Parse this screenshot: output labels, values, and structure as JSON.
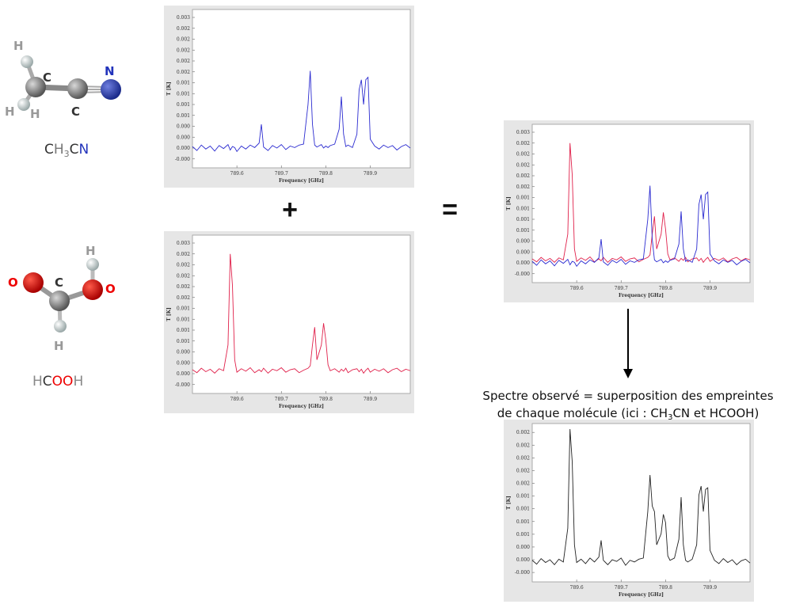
{
  "molecules": [
    {
      "atoms": [
        "H",
        "C",
        "N",
        "H",
        "H",
        "C"
      ],
      "formula": [
        "C",
        "H",
        "3",
        "C",
        "N"
      ]
    },
    {
      "atoms": [
        "H",
        "O",
        "C",
        "O",
        "H"
      ],
      "formula": [
        "H",
        "C",
        "OO",
        "H"
      ]
    }
  ],
  "operators": [
    "+",
    "="
  ],
  "caption": {
    "line1": "Spectre observé = superposition des empreintes",
    "line2": [
      "de chaque molécule (ici : CH",
      "3",
      "CN et HCOOH)"
    ]
  },
  "chart_data": [
    {
      "type": "line",
      "xlabel": "Frequency [GHz]",
      "ylabel": "T [K]",
      "x": [
        789.5,
        789.51,
        789.52,
        789.53,
        789.54,
        789.55,
        789.56,
        789.57,
        789.58,
        789.585,
        789.59,
        789.595,
        789.6,
        789.61,
        789.62,
        789.63,
        789.64,
        789.65,
        789.655,
        789.66,
        789.67,
        789.68,
        789.69,
        789.7,
        789.71,
        789.72,
        789.73,
        789.74,
        789.75,
        789.76,
        789.765,
        789.77,
        789.775,
        789.78,
        789.79,
        789.795,
        789.8,
        789.805,
        789.81,
        789.82,
        789.83,
        789.835,
        789.84,
        789.845,
        789.85,
        789.86,
        789.87,
        789.875,
        789.88,
        789.885,
        789.89,
        789.895,
        789.9,
        789.91,
        789.92,
        789.93,
        789.94,
        789.95,
        789.96,
        789.97,
        789.98,
        789.99
      ],
      "series": [
        {
          "color": "#2b2bd0",
          "values": [
            5e-05,
            -3e-05,
            8e-05,
            0.0,
            6e-05,
            -4e-05,
            7e-05,
            1e-05,
            9e-05,
            -2e-05,
            5e-05,
            3e-05,
            -5e-05,
            6e-05,
            0.0,
            8e-05,
            3e-05,
            0.00012,
            0.0005,
            4e-05,
            -3e-05,
            7e-05,
            2e-05,
            9e-05,
            -1e-05,
            6e-05,
            3e-05,
            8e-05,
            0.0001,
            0.0009,
            0.00158,
            0.0005,
            8e-05,
            4e-05,
            9e-05,
            2e-05,
            6e-05,
            3e-05,
            7e-05,
            0.0001,
            0.0004,
            0.00106,
            0.0003,
            5e-05,
            8e-05,
            3e-05,
            0.0003,
            0.0012,
            0.0014,
            0.0009,
            0.0014,
            0.00145,
            0.0002,
            6e-05,
            0.0,
            8e-05,
            3e-05,
            7e-05,
            -2e-05,
            5e-05,
            9e-05,
            2e-05
          ]
        }
      ],
      "xlim": [
        789.5,
        789.99
      ],
      "ylim": [
        -0.00038,
        0.00282
      ],
      "xticks": [
        789.6,
        789.7,
        789.8,
        789.9
      ],
      "yticks": [
        {
          "value": -0.0002,
          "label": "-0.000"
        },
        {
          "value": 2e-05,
          "label": "0.000"
        },
        {
          "value": 0.00024,
          "label": "0.000"
        },
        {
          "value": 0.00046,
          "label": "0.000"
        },
        {
          "value": 0.00068,
          "label": "0.001"
        },
        {
          "value": 0.0009,
          "label": "0.001"
        },
        {
          "value": 0.00112,
          "label": "0.001"
        },
        {
          "value": 0.00134,
          "label": "0.001"
        },
        {
          "value": 0.00156,
          "label": "0.002"
        },
        {
          "value": 0.00178,
          "label": "0.002"
        },
        {
          "value": 0.002,
          "label": "0.002"
        },
        {
          "value": 0.00222,
          "label": "0.002"
        },
        {
          "value": 0.00244,
          "label": "0.002"
        },
        {
          "value": 0.00266,
          "label": "0.003"
        }
      ]
    },
    {
      "type": "line",
      "xlabel": "Frequency [GHz]",
      "ylabel": "T [K]",
      "x": [
        789.5,
        789.51,
        789.52,
        789.53,
        789.54,
        789.55,
        789.56,
        789.57,
        789.58,
        789.585,
        789.59,
        789.595,
        789.6,
        789.61,
        789.62,
        789.63,
        789.64,
        789.65,
        789.655,
        789.66,
        789.67,
        789.68,
        789.69,
        789.7,
        789.71,
        789.72,
        789.73,
        789.74,
        789.75,
        789.76,
        789.765,
        789.77,
        789.775,
        789.78,
        789.79,
        789.795,
        789.8,
        789.805,
        789.81,
        789.82,
        789.83,
        789.835,
        789.84,
        789.845,
        789.85,
        789.86,
        789.87,
        789.875,
        789.88,
        789.885,
        789.89,
        789.895,
        789.9,
        789.91,
        789.92,
        789.93,
        789.94,
        789.95,
        789.96,
        789.97,
        789.98,
        789.99
      ],
      "series": [
        {
          "color": "#e0204a",
          "values": [
            0.0001,
            4e-05,
            0.00013,
            6e-05,
            0.00011,
            3e-05,
            0.00012,
            8e-05,
            0.0006,
            0.00244,
            0.0018,
            0.0003,
            5e-05,
            0.00012,
            7e-05,
            0.00014,
            4e-05,
            0.0001,
            6e-05,
            0.00013,
            3e-05,
            0.00011,
            8e-05,
            0.00014,
            5e-05,
            0.0001,
            0.00012,
            4e-05,
            9e-05,
            0.00013,
            0.00018,
            0.0006,
            0.00096,
            0.0003,
            0.0006,
            0.00104,
            0.0007,
            0.0002,
            8e-05,
            0.00012,
            5e-05,
            0.00011,
            7e-05,
            0.00013,
            4e-05,
            0.0001,
            0.00012,
            6e-05,
            0.00011,
            3e-05,
            9e-05,
            0.00013,
            5e-05,
            0.00011,
            7e-05,
            0.00012,
            4e-05,
            0.0001,
            0.00013,
            6e-05,
            0.00011,
            8e-05
          ]
        }
      ],
      "xlim": [
        789.5,
        789.99
      ],
      "ylim": [
        -0.00038,
        0.00282
      ],
      "xticks": [
        789.6,
        789.7,
        789.8,
        789.9
      ],
      "yticks": [
        {
          "value": -0.0002,
          "label": "-0.000"
        },
        {
          "value": 2e-05,
          "label": "0.000"
        },
        {
          "value": 0.00024,
          "label": "0.000"
        },
        {
          "value": 0.00046,
          "label": "0.000"
        },
        {
          "value": 0.00068,
          "label": "0.001"
        },
        {
          "value": 0.0009,
          "label": "0.001"
        },
        {
          "value": 0.00112,
          "label": "0.001"
        },
        {
          "value": 0.00134,
          "label": "0.001"
        },
        {
          "value": 0.00156,
          "label": "0.002"
        },
        {
          "value": 0.00178,
          "label": "0.002"
        },
        {
          "value": 0.002,
          "label": "0.002"
        },
        {
          "value": 0.00222,
          "label": "0.002"
        },
        {
          "value": 0.00244,
          "label": "0.002"
        },
        {
          "value": 0.00266,
          "label": "0.003"
        }
      ]
    },
    {
      "type": "line",
      "xlabel": "Frequency [GHz]",
      "ylabel": "T [K]",
      "x": [
        789.5,
        789.51,
        789.52,
        789.53,
        789.54,
        789.55,
        789.56,
        789.57,
        789.58,
        789.585,
        789.59,
        789.595,
        789.6,
        789.61,
        789.62,
        789.63,
        789.64,
        789.65,
        789.655,
        789.66,
        789.67,
        789.68,
        789.69,
        789.7,
        789.71,
        789.72,
        789.73,
        789.74,
        789.75,
        789.76,
        789.765,
        789.77,
        789.775,
        789.78,
        789.79,
        789.795,
        789.8,
        789.805,
        789.81,
        789.82,
        789.83,
        789.835,
        789.84,
        789.845,
        789.85,
        789.86,
        789.87,
        789.875,
        789.88,
        789.885,
        789.89,
        789.895,
        789.9,
        789.91,
        789.92,
        789.93,
        789.94,
        789.95,
        789.96,
        789.97,
        789.98,
        789.99
      ],
      "series": [
        {
          "color": "#e0204a",
          "values": [
            0.0001,
            4e-05,
            0.00013,
            6e-05,
            0.00011,
            3e-05,
            0.00012,
            8e-05,
            0.0006,
            0.00244,
            0.0018,
            0.0003,
            5e-05,
            0.00012,
            7e-05,
            0.00014,
            4e-05,
            0.0001,
            6e-05,
            0.00013,
            3e-05,
            0.00011,
            8e-05,
            0.00014,
            5e-05,
            0.0001,
            0.00012,
            4e-05,
            9e-05,
            0.00013,
            0.00018,
            0.0006,
            0.00096,
            0.0003,
            0.0006,
            0.00104,
            0.0007,
            0.0002,
            8e-05,
            0.00012,
            5e-05,
            0.00011,
            7e-05,
            0.00013,
            4e-05,
            0.0001,
            0.00012,
            6e-05,
            0.00011,
            3e-05,
            9e-05,
            0.00013,
            5e-05,
            0.00011,
            7e-05,
            0.00012,
            4e-05,
            0.0001,
            0.00013,
            6e-05,
            0.00011,
            8e-05
          ]
        },
        {
          "color": "#2b2bd0",
          "values": [
            5e-05,
            -3e-05,
            8e-05,
            0.0,
            6e-05,
            -4e-05,
            7e-05,
            1e-05,
            9e-05,
            -2e-05,
            5e-05,
            3e-05,
            -5e-05,
            6e-05,
            0.0,
            8e-05,
            3e-05,
            0.00012,
            0.0005,
            4e-05,
            -3e-05,
            7e-05,
            2e-05,
            9e-05,
            -1e-05,
            6e-05,
            3e-05,
            8e-05,
            0.0001,
            0.0009,
            0.00158,
            0.0005,
            8e-05,
            4e-05,
            9e-05,
            2e-05,
            6e-05,
            3e-05,
            7e-05,
            0.0001,
            0.0004,
            0.00106,
            0.0003,
            5e-05,
            8e-05,
            3e-05,
            0.0003,
            0.0012,
            0.0014,
            0.0009,
            0.0014,
            0.00145,
            0.0002,
            6e-05,
            0.0,
            8e-05,
            3e-05,
            7e-05,
            -2e-05,
            5e-05,
            9e-05,
            2e-05
          ]
        }
      ],
      "xlim": [
        789.5,
        789.99
      ],
      "ylim": [
        -0.00038,
        0.00282
      ],
      "xticks": [
        789.6,
        789.7,
        789.8,
        789.9
      ],
      "yticks": [
        {
          "value": -0.0002,
          "label": "-0.000"
        },
        {
          "value": 2e-05,
          "label": "0.000"
        },
        {
          "value": 0.00024,
          "label": "0.000"
        },
        {
          "value": 0.00046,
          "label": "0.000"
        },
        {
          "value": 0.00068,
          "label": "0.001"
        },
        {
          "value": 0.0009,
          "label": "0.001"
        },
        {
          "value": 0.00112,
          "label": "0.001"
        },
        {
          "value": 0.00134,
          "label": "0.001"
        },
        {
          "value": 0.00156,
          "label": "0.002"
        },
        {
          "value": 0.00178,
          "label": "0.002"
        },
        {
          "value": 0.002,
          "label": "0.002"
        },
        {
          "value": 0.00222,
          "label": "0.002"
        },
        {
          "value": 0.00244,
          "label": "0.002"
        },
        {
          "value": 0.00266,
          "label": "0.003"
        }
      ]
    },
    {
      "type": "line",
      "xlabel": "Frequency [GHz]",
      "ylabel": "T [K]",
      "x": [
        789.5,
        789.51,
        789.52,
        789.53,
        789.54,
        789.55,
        789.56,
        789.57,
        789.58,
        789.585,
        789.59,
        789.595,
        789.6,
        789.61,
        789.62,
        789.63,
        789.64,
        789.65,
        789.655,
        789.66,
        789.67,
        789.68,
        789.69,
        789.7,
        789.71,
        789.72,
        789.73,
        789.74,
        789.75,
        789.76,
        789.765,
        789.77,
        789.775,
        789.78,
        789.79,
        789.795,
        789.8,
        789.805,
        789.81,
        789.82,
        789.83,
        789.835,
        789.84,
        789.845,
        789.85,
        789.86,
        789.87,
        789.875,
        789.88,
        789.885,
        789.89,
        789.895,
        789.9,
        789.91,
        789.92,
        789.93,
        789.94,
        789.95,
        789.96,
        789.97,
        789.98,
        789.99
      ],
      "series": [
        {
          "color": "#222222",
          "values": [
            0.00012,
            5e-05,
            0.00015,
            8e-05,
            0.00013,
            4e-05,
            0.00014,
            9e-05,
            0.0007,
            0.00249,
            0.0019,
            0.0004,
            8e-05,
            0.00014,
            6e-05,
            0.00016,
            9e-05,
            0.00018,
            0.00048,
            0.00012,
            4e-05,
            0.00013,
            0.0001,
            0.00016,
            3e-05,
            0.00012,
            9e-05,
            0.00014,
            0.00016,
            0.001,
            0.00166,
            0.0011,
            0.001,
            0.0004,
            0.0006,
            0.00095,
            0.0008,
            0.0002,
            0.00012,
            0.00016,
            0.0005,
            0.00126,
            0.0004,
            0.00012,
            9e-05,
            0.00014,
            0.0004,
            0.0013,
            0.00146,
            0.001,
            0.0014,
            0.00143,
            0.0003,
            0.00012,
            6e-05,
            0.00015,
            8e-05,
            0.00013,
            4e-05,
            0.00011,
            0.00014,
            7e-05
          ]
        }
      ],
      "xlim": [
        789.5,
        789.99
      ],
      "ylim": [
        -0.00027,
        0.00259
      ],
      "xticks": [
        789.6,
        789.7,
        789.8,
        789.9
      ],
      "yticks": [
        {
          "value": -0.0001,
          "label": "-0.000"
        },
        {
          "value": 0.00013,
          "label": "0.000"
        },
        {
          "value": 0.00036,
          "label": "0.000"
        },
        {
          "value": 0.00059,
          "label": "0.001"
        },
        {
          "value": 0.00082,
          "label": "0.001"
        },
        {
          "value": 0.00105,
          "label": "0.001"
        },
        {
          "value": 0.00128,
          "label": "0.001"
        },
        {
          "value": 0.00151,
          "label": "0.002"
        },
        {
          "value": 0.00174,
          "label": "0.002"
        },
        {
          "value": 0.00197,
          "label": "0.002"
        },
        {
          "value": 0.0022,
          "label": "0.002"
        },
        {
          "value": 0.00243,
          "label": "0.002"
        }
      ]
    }
  ]
}
